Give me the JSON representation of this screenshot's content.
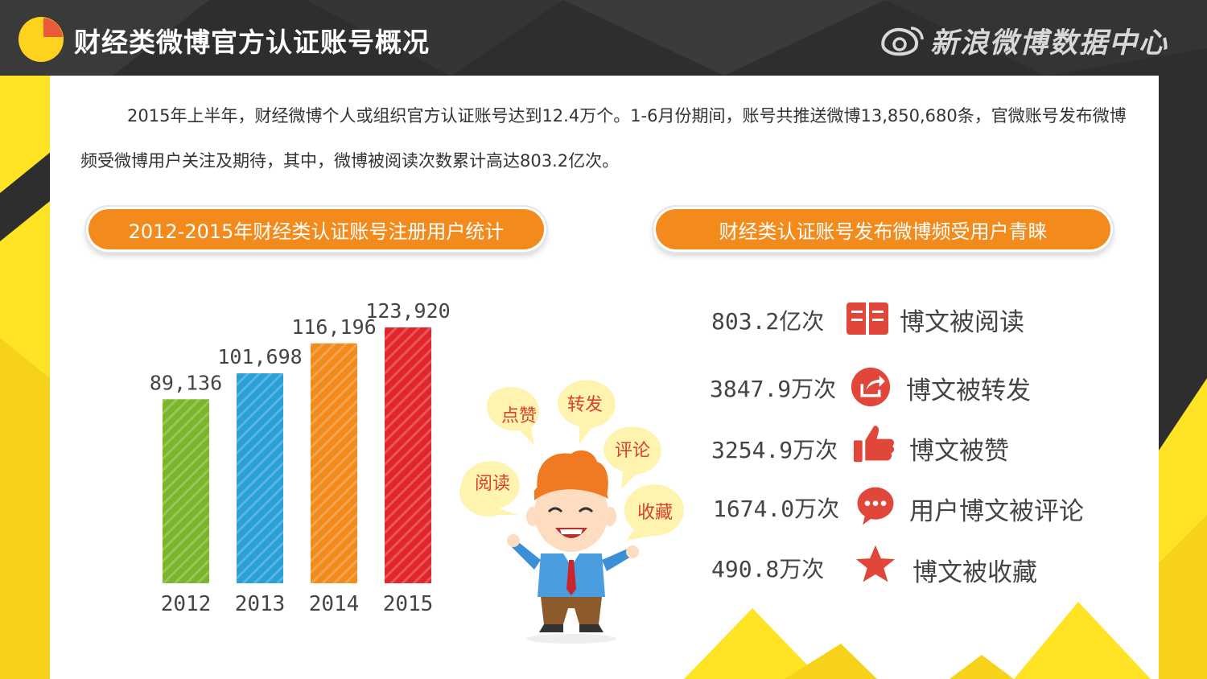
{
  "header": {
    "title": "财经类微博官方认证账号概况",
    "brand": "新浪微博数据中心"
  },
  "intro": {
    "text": "2015年上半年，财经微博个人或组织官方认证账号达到12.4万个。1-6月份期间，账号共推送微博13,850,680条，官微账号发布微博频受微博用户关注及期待，其中，微博被阅读次数累计高达803.2亿次。"
  },
  "sections": {
    "left_title": "2012-2015年财经类认证账号注册用户统计",
    "right_title": "财经类认证账号发布微博频受用户青睐"
  },
  "chart_data": {
    "type": "bar",
    "categories": [
      "2012",
      "2013",
      "2014",
      "2015"
    ],
    "values": [
      89136,
      101698,
      116196,
      123920
    ],
    "value_labels": [
      "89,136",
      "101,698",
      "116,196",
      "123,920"
    ],
    "colors": [
      "#7bb62a",
      "#2a9fd8",
      "#f28a1c",
      "#e0262b"
    ]
  },
  "bubbles": [
    "点赞",
    "转发",
    "评论",
    "阅读",
    "收藏"
  ],
  "stats": [
    {
      "value": "803.2亿次",
      "label": "博文被阅读",
      "icon": "book-icon"
    },
    {
      "value": "3847.9万次",
      "label": "博文被转发",
      "icon": "share-icon"
    },
    {
      "value": "3254.9万次",
      "label": "博文被赞",
      "icon": "thumbs-up-icon"
    },
    {
      "value": "1674.0万次",
      "label": "用户博文被评论",
      "icon": "comment-icon"
    },
    {
      "value": "490.8万次",
      "label": "博文被收藏",
      "icon": "star-icon"
    }
  ],
  "colors": {
    "accent": "#f28a1c",
    "yellow": "#ffe324",
    "icon_red": "#e0463a",
    "dark": "#2e2e2e"
  }
}
